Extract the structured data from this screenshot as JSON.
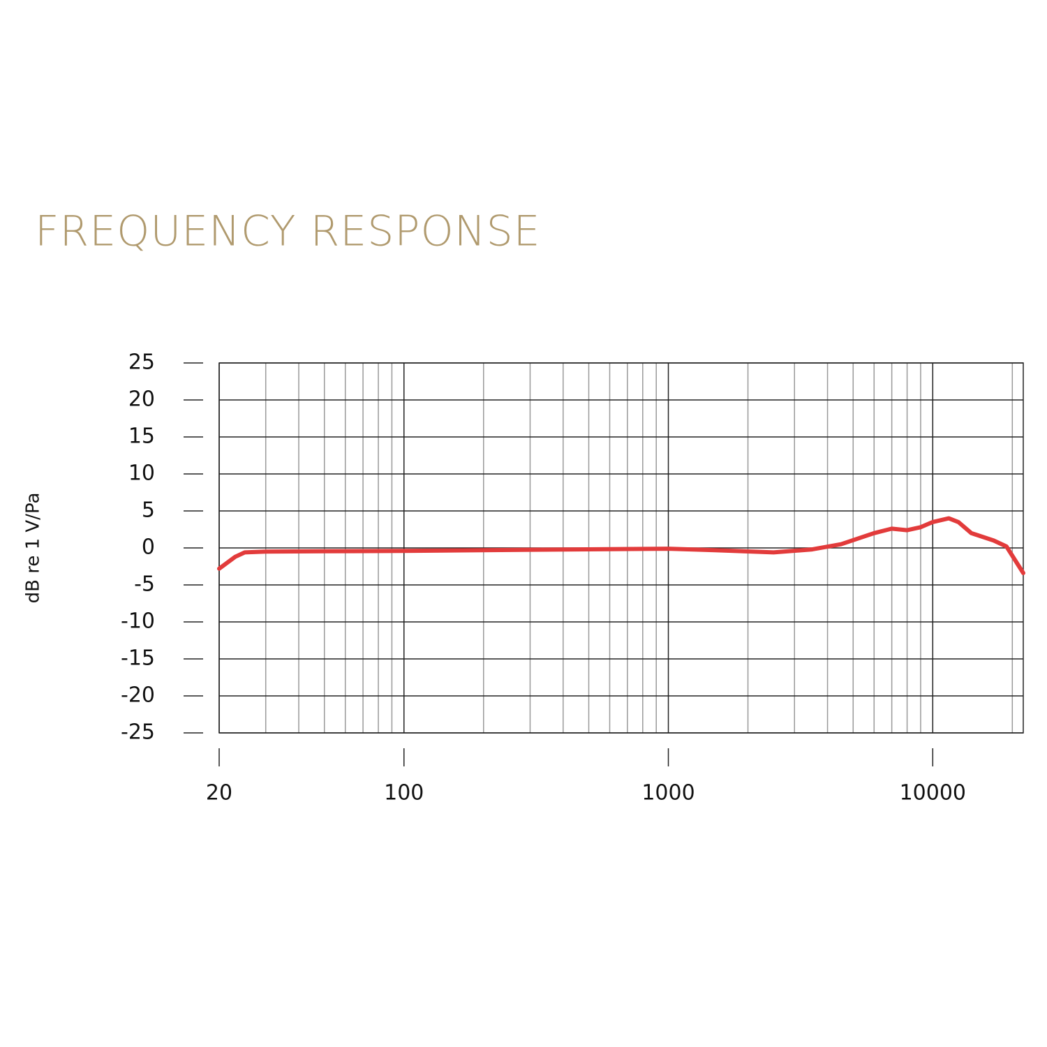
{
  "chart_data": {
    "type": "line",
    "title": "FREQUENCY RESPONSE",
    "y_label": "dB re 1 V/Pa",
    "log_x": true,
    "grid": true,
    "color": "#e23b3b",
    "x": [
      20,
      23,
      25,
      30,
      50,
      100,
      300,
      1000,
      1500,
      2500,
      3500,
      4500,
      6000,
      7000,
      8000,
      9000,
      10000,
      11500,
      12500,
      14000,
      17000,
      19000,
      22000
    ],
    "values": [
      -2.8,
      -1.2,
      -0.6,
      -0.5,
      -0.45,
      -0.4,
      -0.25,
      -0.1,
      -0.3,
      -0.6,
      -0.2,
      0.5,
      2.0,
      2.6,
      2.4,
      2.8,
      3.5,
      4.0,
      3.5,
      2.0,
      1.0,
      0.2,
      -3.4
    ],
    "xlim": [
      20,
      22000
    ],
    "xticks": [
      20,
      100,
      1000,
      10000
    ],
    "xminor": [
      30,
      40,
      50,
      60,
      70,
      80,
      90,
      200,
      300,
      400,
      500,
      600,
      700,
      800,
      900,
      2000,
      3000,
      4000,
      5000,
      6000,
      7000,
      8000,
      9000,
      20000
    ],
    "ylim": [
      -25,
      25
    ],
    "yticks": [
      25,
      20,
      15,
      10,
      5,
      0,
      -5,
      -10,
      -15,
      -20,
      -25
    ]
  }
}
